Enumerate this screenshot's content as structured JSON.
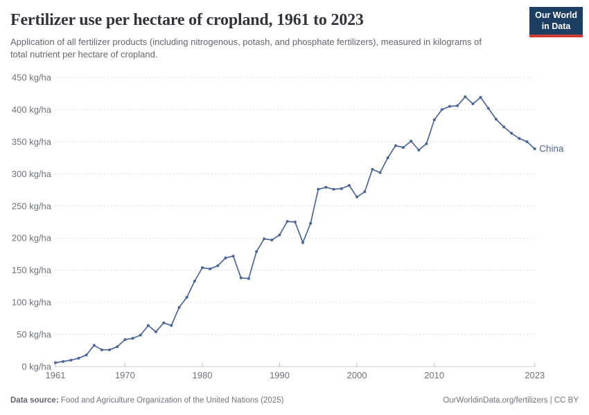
{
  "header": {
    "title": "Fertilizer use per hectare of cropland, 1961 to 2023",
    "subtitle": "Application of all fertilizer products (including nitrogenous, potash, and phosphate fertilizers), measured in kilograms of total nutrient per hectare of cropland.",
    "logo": {
      "line1": "Our World",
      "line2": "in Data"
    }
  },
  "chart_data": {
    "type": "line",
    "title": "Fertilizer use per hectare of cropland, 1961 to 2023",
    "xlabel": "",
    "ylabel": "",
    "xlim": [
      1961,
      2023
    ],
    "ylim": [
      0,
      450
    ],
    "x_ticks": [
      1961,
      1970,
      1980,
      1990,
      2000,
      2010,
      2023
    ],
    "y_ticks": [
      0,
      50,
      100,
      150,
      200,
      250,
      300,
      350,
      400,
      450
    ],
    "y_tick_suffix": " kg/ha",
    "grid": "horizontal-dashed",
    "legend_position": "end-of-line-label",
    "series": [
      {
        "name": "China",
        "color": "#4a659a",
        "x": [
          1961,
          1962,
          1963,
          1964,
          1965,
          1966,
          1967,
          1968,
          1969,
          1970,
          1971,
          1972,
          1973,
          1974,
          1975,
          1976,
          1977,
          1978,
          1979,
          1980,
          1981,
          1982,
          1983,
          1984,
          1985,
          1986,
          1987,
          1988,
          1989,
          1990,
          1991,
          1992,
          1993,
          1994,
          1995,
          1996,
          1997,
          1998,
          1999,
          2000,
          2001,
          2002,
          2003,
          2004,
          2005,
          2006,
          2007,
          2008,
          2009,
          2010,
          2011,
          2012,
          2013,
          2014,
          2015,
          2016,
          2017,
          2018,
          2019,
          2020,
          2021,
          2022,
          2023
        ],
        "values": [
          6,
          8,
          10,
          13,
          18,
          33,
          26,
          26,
          31,
          42,
          44,
          49,
          64,
          54,
          68,
          64,
          92,
          108,
          133,
          154,
          152,
          157,
          169,
          172,
          138,
          137,
          179,
          199,
          197,
          205,
          226,
          225,
          193,
          223,
          276,
          279,
          276,
          277,
          282,
          264,
          272,
          307,
          302,
          325,
          344,
          341,
          351,
          337,
          347,
          384,
          400,
          405,
          406,
          420,
          409,
          419,
          402,
          385,
          373,
          363,
          355,
          350,
          339
        ]
      }
    ]
  },
  "footer": {
    "source_label": "Data source:",
    "source_text": " Food and Agriculture Organization of the United Nations (2025)",
    "rights": "OurWorldinData.org/fertilizers | CC BY"
  },
  "colors": {
    "series_blue": "#4a659a",
    "logo_navy": "#1d3d63",
    "logo_red": "#cf3b36",
    "grid_gray": "#dcdee1",
    "tick_text": "#6e737b"
  }
}
